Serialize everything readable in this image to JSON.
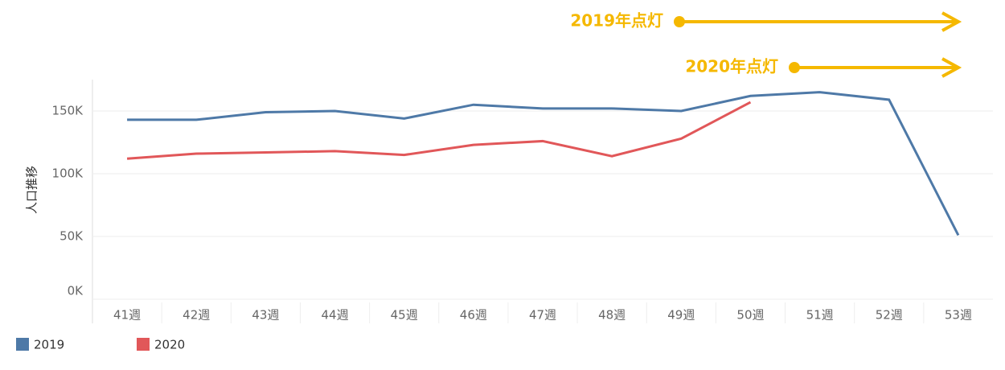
{
  "chart_data": {
    "type": "line",
    "y_label": "人口推移",
    "categories": [
      "41週",
      "42週",
      "43週",
      "44週",
      "45週",
      "46週",
      "47週",
      "48週",
      "49週",
      "50週",
      "51週",
      "52週",
      "53週"
    ],
    "series": [
      {
        "name": "2019",
        "color": "#4e79a7",
        "values": [
          143000,
          143000,
          149000,
          150000,
          144000,
          155000,
          152000,
          152000,
          150000,
          162000,
          165000,
          159000,
          51000
        ]
      },
      {
        "name": "2020",
        "color": "#e15759",
        "values": [
          112000,
          116000,
          117000,
          118000,
          115000,
          123000,
          126000,
          114000,
          128000,
          157000,
          null,
          null,
          null
        ]
      }
    ],
    "ylim": [
      0,
      175000
    ],
    "yticks": [
      {
        "value": 0,
        "label": "0K"
      },
      {
        "value": 50000,
        "label": "50K"
      },
      {
        "value": 100000,
        "label": "100K"
      },
      {
        "value": 150000,
        "label": "150K"
      }
    ],
    "grid": true,
    "annotations": [
      {
        "text": "2019年点灯",
        "color": "#f5b800"
      },
      {
        "text": "2020年点灯",
        "color": "#f5b800"
      }
    ]
  }
}
